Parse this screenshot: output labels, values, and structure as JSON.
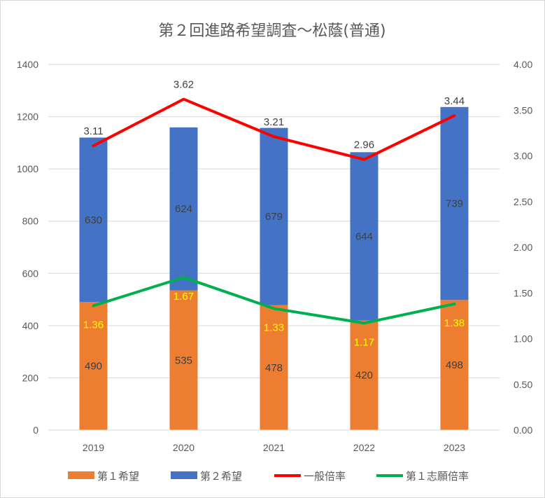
{
  "chart_data": {
    "type": "bar",
    "title": "第２回進路希望調査～松蔭(普通)",
    "categories": [
      "2019",
      "2020",
      "2021",
      "2022",
      "2023"
    ],
    "series": [
      {
        "name": "第１希望",
        "kind": "bar-stacked",
        "axis": "left",
        "color": "#ED7D31",
        "values": [
          490,
          535,
          478,
          420,
          498
        ]
      },
      {
        "name": "第２希望",
        "kind": "bar-stacked",
        "axis": "left",
        "color": "#4472C4",
        "values": [
          630,
          624,
          679,
          644,
          739
        ]
      },
      {
        "name": "一般倍率",
        "kind": "line",
        "axis": "right",
        "color": "#FF0000",
        "values": [
          3.11,
          3.62,
          3.21,
          2.96,
          3.44
        ]
      },
      {
        "name": "第１志願倍率",
        "kind": "line",
        "axis": "right",
        "color": "#00B050",
        "values": [
          1.36,
          1.67,
          1.33,
          1.17,
          1.38
        ]
      }
    ],
    "y_left": {
      "min": 0,
      "max": 1400,
      "ticks": [
        "0",
        "200",
        "400",
        "600",
        "800",
        "1000",
        "1200",
        "1400"
      ]
    },
    "y_right": {
      "min": 0,
      "max": 4,
      "ticks": [
        "0.00",
        "0.50",
        "1.00",
        "1.50",
        "2.00",
        "2.50",
        "3.00",
        "3.50",
        "4.00"
      ]
    },
    "grid": true,
    "legend_position": "bottom"
  }
}
